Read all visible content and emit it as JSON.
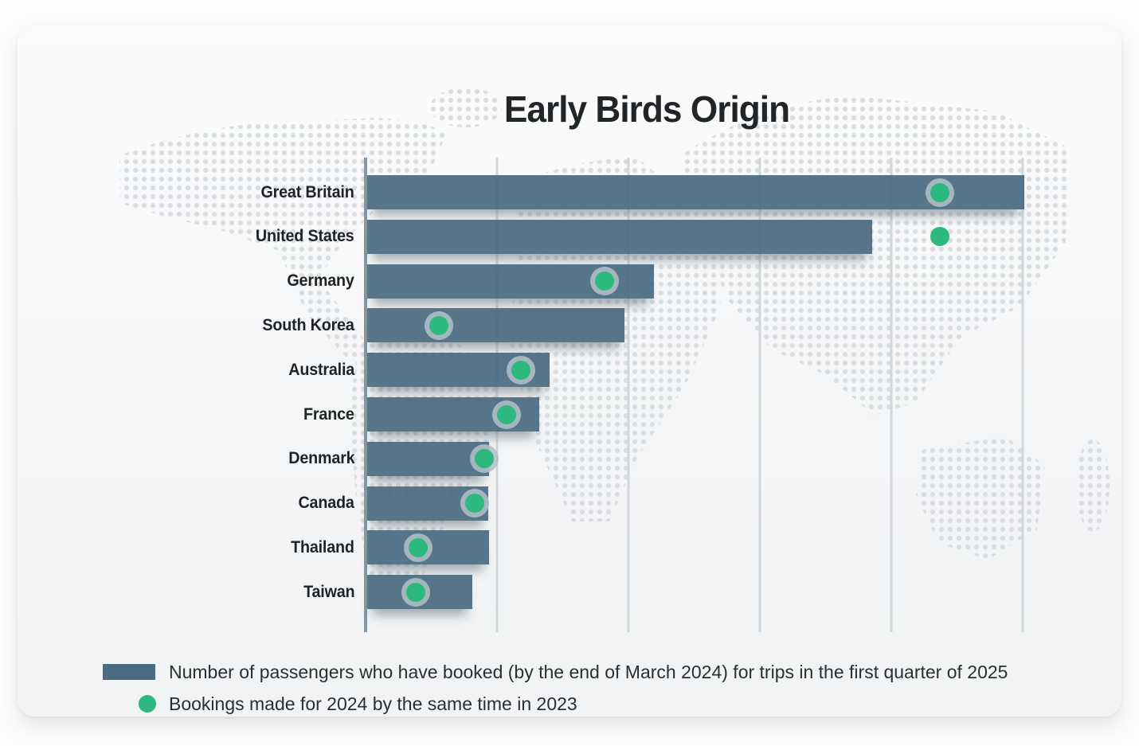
{
  "chart_data": {
    "type": "bar",
    "orientation": "horizontal",
    "title": "Early Birds Origin",
    "categories": [
      "Great Britain",
      "United States",
      "Germany",
      "South Korea",
      "Australia",
      "France",
      "Denmark",
      "Canada",
      "Thailand",
      "Taiwan"
    ],
    "series": [
      {
        "name": "Number of passengers who have booked (by the end of March 2024) for trips in the first quarter of 2025",
        "style": "bar",
        "color": "#4a6c81",
        "values": [
          5.0,
          3.84,
          2.18,
          1.96,
          1.39,
          1.31,
          0.93,
          0.92,
          0.93,
          0.8
        ]
      },
      {
        "name": "Bookings made for 2024 by the same time in 2023",
        "style": "dot",
        "color": "#2db87d",
        "values": [
          4.37,
          4.37,
          1.82,
          0.56,
          1.18,
          1.07,
          0.9,
          0.83,
          0.4,
          0.38
        ]
      }
    ],
    "dot_has_gray_ring": [
      true,
      false,
      true,
      true,
      true,
      true,
      true,
      true,
      true,
      true
    ],
    "x_axis": {
      "min": 0,
      "max": 5,
      "gridline_count": 6,
      "tick_labels_visible": false
    },
    "units": "relative gridline units (no numeric axis labels shown in chart)",
    "legend_position": "bottom-left",
    "grid": true
  },
  "legend": {
    "items": [
      {
        "swatch": "bar-swatch",
        "label": "Number of passengers who have booked (by the end of March 2024) for trips in the first quarter of 2025"
      },
      {
        "swatch": "dot-swatch",
        "label": "Bookings made for 2024 by the same time in 2023"
      }
    ]
  },
  "colors": {
    "bar": "#4a6c81",
    "dot_green": "#2db87d",
    "dot_ring_gray": "#b2bfc6",
    "gridline": "#d2d7da",
    "axis_line": "#8299a5",
    "map_dots": "#dadde0",
    "title_text": "#222528",
    "label_text": "#1f2326",
    "card_background": "#f4f5f6"
  }
}
